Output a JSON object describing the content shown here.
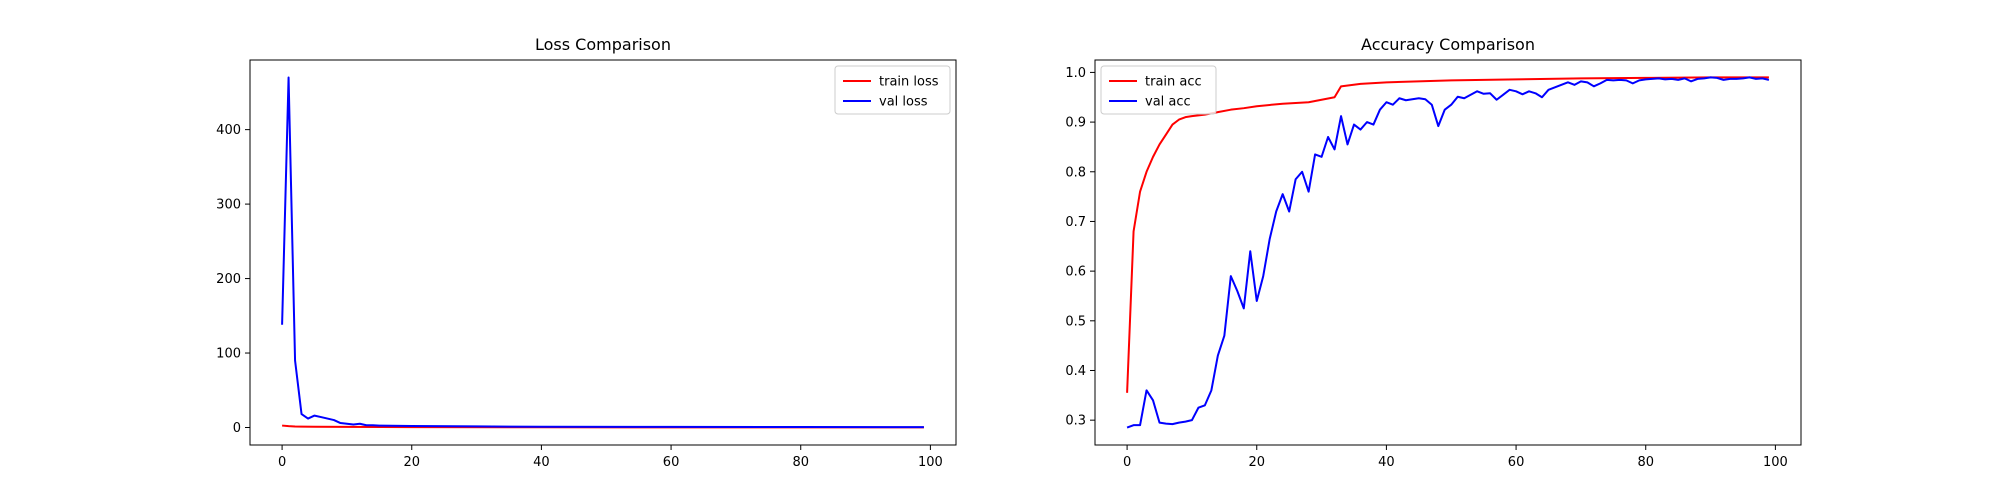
{
  "chart_data": [
    {
      "type": "line",
      "title": "Loss Comparison",
      "xlabel": "",
      "ylabel": "",
      "xlim": [
        -4.95,
        103.95
      ],
      "ylim": [
        -23.5,
        493.5
      ],
      "xticks": [
        0,
        20,
        40,
        60,
        80,
        100
      ],
      "yticks": [
        0,
        100,
        200,
        300,
        400
      ],
      "grid": false,
      "legend_position": "top-right",
      "series": [
        {
          "name": "train loss",
          "color": "#ff0000",
          "x": [
            0,
            1,
            2,
            3,
            5,
            10,
            20,
            40,
            60,
            80,
            99
          ],
          "y": [
            2.6,
            1.8,
            1.4,
            1.2,
            1.0,
            0.8,
            0.5,
            0.3,
            0.2,
            0.15,
            0.1
          ]
        },
        {
          "name": "val loss",
          "color": "#0000ff",
          "x": [
            0,
            1,
            2,
            3,
            4,
            5,
            6,
            7,
            8,
            9,
            10,
            11,
            12,
            13,
            14,
            15,
            20,
            30,
            40,
            60,
            80,
            99
          ],
          "y": [
            138,
            470,
            90,
            18,
            12,
            16,
            14,
            12,
            10,
            6,
            5,
            4,
            5,
            3,
            3,
            2.5,
            2,
            1.5,
            1,
            0.8,
            0.6,
            0.5
          ]
        }
      ]
    },
    {
      "type": "line",
      "title": "Accuracy Comparison",
      "xlabel": "",
      "ylabel": "",
      "xlim": [
        -4.95,
        103.95
      ],
      "ylim": [
        0.25,
        1.025
      ],
      "xticks": [
        0,
        20,
        40,
        60,
        80,
        100
      ],
      "yticks": [
        0.3,
        0.4,
        0.5,
        0.6,
        0.7,
        0.8,
        0.9,
        1.0
      ],
      "grid": false,
      "legend_position": "top-left",
      "series": [
        {
          "name": "train acc",
          "color": "#ff0000",
          "x": [
            0,
            1,
            2,
            3,
            4,
            5,
            6,
            7,
            8,
            9,
            10,
            12,
            14,
            16,
            18,
            20,
            24,
            28,
            32,
            33,
            36,
            40,
            50,
            60,
            70,
            80,
            90,
            99
          ],
          "y": [
            0.355,
            0.68,
            0.76,
            0.8,
            0.83,
            0.855,
            0.875,
            0.895,
            0.905,
            0.91,
            0.912,
            0.915,
            0.92,
            0.925,
            0.928,
            0.932,
            0.937,
            0.94,
            0.95,
            0.972,
            0.977,
            0.98,
            0.984,
            0.986,
            0.988,
            0.989,
            0.99,
            0.99
          ]
        },
        {
          "name": "val acc",
          "color": "#0000ff",
          "x": [
            0,
            1,
            2,
            3,
            4,
            5,
            6,
            7,
            8,
            9,
            10,
            11,
            12,
            13,
            14,
            15,
            16,
            17,
            18,
            19,
            20,
            21,
            22,
            23,
            24,
            25,
            26,
            27,
            28,
            29,
            30,
            31,
            32,
            33,
            34,
            35,
            36,
            37,
            38,
            39,
            40,
            41,
            42,
            43,
            44,
            45,
            46,
            47,
            48,
            49,
            50,
            51,
            52,
            53,
            54,
            55,
            56,
            57,
            58,
            59,
            60,
            61,
            62,
            63,
            64,
            65,
            66,
            67,
            68,
            69,
            70,
            71,
            72,
            73,
            74,
            75,
            76,
            77,
            78,
            79,
            80,
            81,
            82,
            83,
            84,
            85,
            86,
            87,
            88,
            89,
            90,
            91,
            92,
            93,
            94,
            95,
            96,
            97,
            98,
            99
          ],
          "y": [
            0.285,
            0.29,
            0.29,
            0.36,
            0.34,
            0.295,
            0.293,
            0.292,
            0.295,
            0.297,
            0.3,
            0.325,
            0.33,
            0.36,
            0.43,
            0.47,
            0.59,
            0.56,
            0.525,
            0.64,
            0.54,
            0.59,
            0.665,
            0.72,
            0.755,
            0.72,
            0.785,
            0.8,
            0.76,
            0.835,
            0.83,
            0.87,
            0.845,
            0.912,
            0.855,
            0.895,
            0.885,
            0.9,
            0.895,
            0.925,
            0.94,
            0.935,
            0.948,
            0.944,
            0.946,
            0.948,
            0.946,
            0.935,
            0.892,
            0.925,
            0.935,
            0.951,
            0.948,
            0.955,
            0.962,
            0.957,
            0.958,
            0.945,
            0.955,
            0.965,
            0.962,
            0.956,
            0.962,
            0.958,
            0.95,
            0.965,
            0.97,
            0.975,
            0.98,
            0.975,
            0.982,
            0.98,
            0.972,
            0.978,
            0.985,
            0.984,
            0.985,
            0.984,
            0.978,
            0.984,
            0.986,
            0.987,
            0.988,
            0.986,
            0.987,
            0.985,
            0.988,
            0.982,
            0.987,
            0.988,
            0.99,
            0.989,
            0.985,
            0.987,
            0.987,
            0.988,
            0.99,
            0.987,
            0.988,
            0.985
          ]
        }
      ]
    }
  ]
}
